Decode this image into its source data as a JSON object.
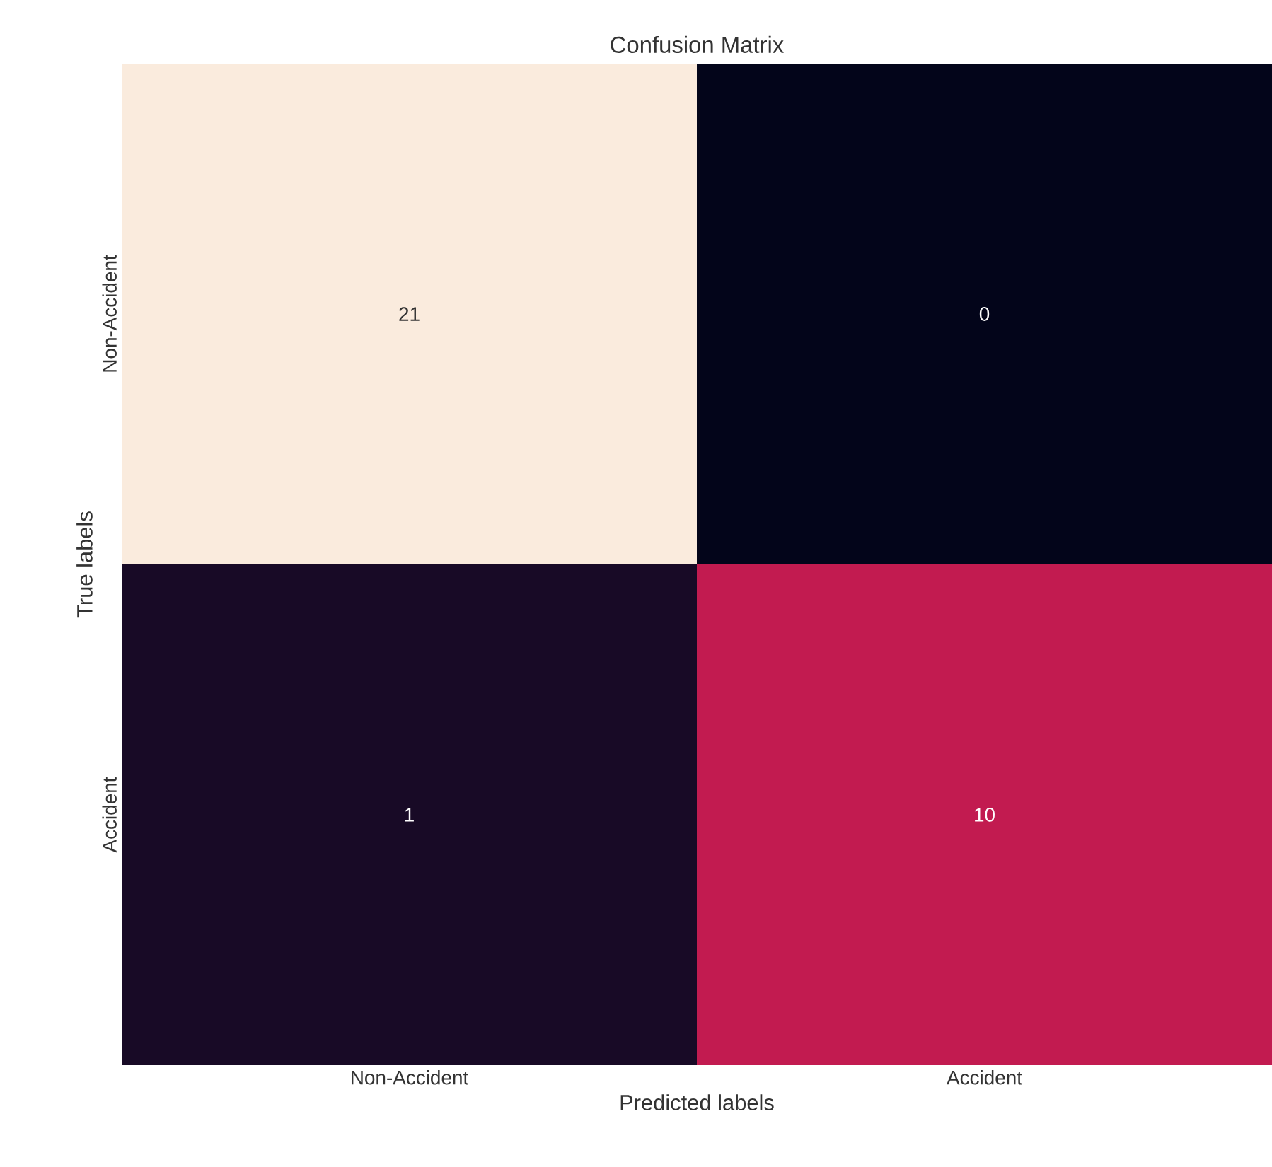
{
  "chart_data": {
    "type": "heatmap",
    "title": "Confusion Matrix",
    "xlabel": "Predicted labels",
    "ylabel": "True labels",
    "categories": [
      "Non-Accident",
      "Accident"
    ],
    "y_categories": [
      "Non-Accident",
      "Accident"
    ],
    "cells": [
      [
        21,
        0
      ],
      [
        1,
        10
      ]
    ],
    "data_labels": true
  }
}
